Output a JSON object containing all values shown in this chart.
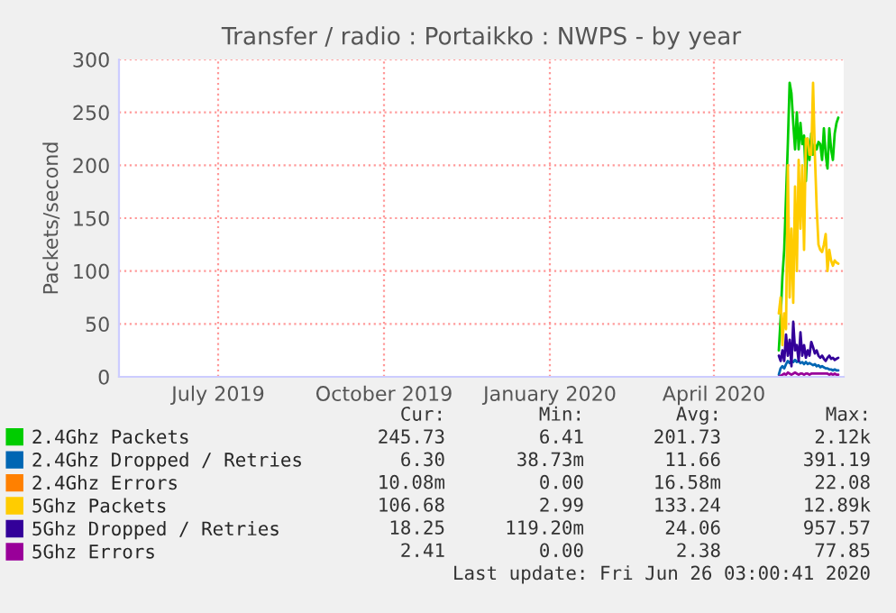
{
  "chart_data": {
    "type": "line",
    "title": "Transfer / radio : Portaikko : NWPS - by year",
    "ylabel": "Packets/second",
    "x": [
      "2020-05-22",
      "2020-05-23",
      "2020-05-24",
      "2020-05-25",
      "2020-05-26",
      "2020-05-27",
      "2020-05-28",
      "2020-05-29",
      "2020-05-30",
      "2020-05-31",
      "2020-06-01",
      "2020-06-02",
      "2020-06-03",
      "2020-06-04",
      "2020-06-05",
      "2020-06-06",
      "2020-06-07",
      "2020-06-08",
      "2020-06-09",
      "2020-06-10",
      "2020-06-11",
      "2020-06-12",
      "2020-06-13",
      "2020-06-14",
      "2020-06-15",
      "2020-06-16",
      "2020-06-17",
      "2020-06-18",
      "2020-06-19",
      "2020-06-20",
      "2020-06-21",
      "2020-06-22",
      "2020-06-23",
      "2020-06-24"
    ],
    "series": [
      {
        "name": "2.4Ghz Packets",
        "color": "#00cc00",
        "values": [
          25,
          55,
          95,
          120,
          170,
          220,
          278,
          268,
          240,
          215,
          250,
          215,
          240,
          220,
          228,
          185,
          225,
          205,
          230,
          210,
          220,
          215,
          222,
          220,
          205,
          235,
          210,
          197,
          235,
          215,
          205,
          230,
          240,
          245
        ]
      },
      {
        "name": "2.4Ghz Dropped / Retries",
        "color": "#0066b3",
        "values": [
          2,
          8,
          10,
          8,
          12,
          15,
          13,
          15,
          14,
          16,
          14,
          15,
          13,
          14,
          12,
          14,
          12,
          13,
          12,
          11,
          12,
          10,
          11,
          9,
          10,
          9,
          8,
          8,
          7,
          7,
          6,
          7,
          6,
          6
        ]
      },
      {
        "name": "2.4Ghz Errors",
        "color": "#ff8000",
        "values": [
          null,
          null,
          null,
          null,
          null,
          null,
          null,
          null,
          null,
          null,
          null,
          null,
          null,
          null,
          null,
          null,
          null,
          null,
          null,
          null,
          null,
          null,
          null,
          null,
          null,
          null,
          null,
          null,
          null,
          null,
          null,
          null,
          null,
          null
        ]
      },
      {
        "name": "5Ghz Packets",
        "color": "#ffcc00",
        "values": [
          60,
          75,
          30,
          60,
          45,
          200,
          75,
          140,
          70,
          180,
          100,
          205,
          140,
          200,
          120,
          225,
          225,
          210,
          210,
          278,
          210,
          160,
          125,
          120,
          118,
          125,
          135,
          100,
          120,
          110,
          105,
          110,
          108,
          107
        ]
      },
      {
        "name": "5Ghz Dropped / Retries",
        "color": "#330099",
        "values": [
          20,
          15,
          25,
          15,
          40,
          20,
          35,
          10,
          52,
          25,
          30,
          15,
          42,
          20,
          30,
          18,
          25,
          20,
          33,
          28,
          22,
          25,
          20,
          18,
          20,
          17,
          15,
          18,
          20,
          17,
          18,
          16,
          17,
          18
        ]
      },
      {
        "name": "5Ghz Errors",
        "color": "#990099",
        "values": [
          0,
          1,
          2,
          3,
          2,
          4,
          3,
          2,
          3,
          4,
          3,
          2,
          3,
          3,
          2,
          3,
          3,
          2,
          3,
          3,
          3,
          3,
          3,
          3,
          3,
          3,
          3,
          3,
          2,
          3,
          2,
          3,
          2,
          2
        ]
      }
    ],
    "xlim": [
      "2019-05-22",
      "2020-06-27"
    ],
    "xticks": [
      {
        "value": "2019-07-16",
        "label": "July 2019"
      },
      {
        "value": "2019-10-16",
        "label": "October 2019"
      },
      {
        "value": "2020-01-16",
        "label": "January 2020"
      },
      {
        "value": "2020-04-16",
        "label": "April 2020"
      }
    ],
    "ylim": [
      0,
      300
    ],
    "yticks": [
      0,
      50,
      100,
      150,
      200,
      250,
      300
    ],
    "grid": true,
    "legend": "bottom",
    "line_style": "solid",
    "marker": "none",
    "annotations": [
      "Cur:",
      "Min:",
      "Avg:",
      "Max:",
      "245.73",
      "6.41",
      "201.73",
      "2.12k",
      "6.30",
      "38.73m",
      "11.66",
      "391.19",
      "10.08m",
      "0.00",
      "16.58m",
      "22.08",
      "106.68",
      "2.99",
      "133.24",
      "12.89k",
      "18.25",
      "119.20m",
      "24.06",
      "957.57",
      "2.41",
      "0.00",
      "2.38",
      "77.85",
      "Last update: Fri Jun 26 03:00:41 2020"
    ]
  }
}
